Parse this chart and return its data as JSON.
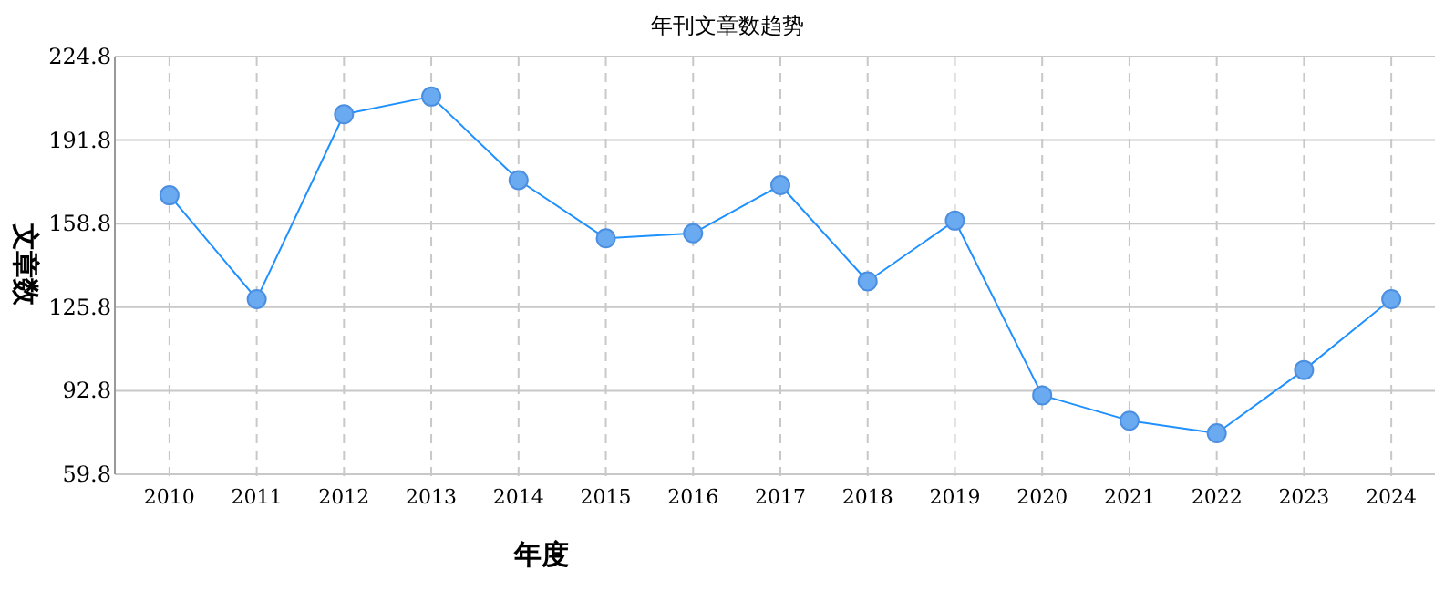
{
  "chart_data": {
    "type": "line",
    "title": "年刊文章数趋势",
    "xlabel": "年度",
    "ylabel": "文章数",
    "categories": [
      "2010",
      "2011",
      "2012",
      "2013",
      "2014",
      "2015",
      "2016",
      "2017",
      "2018",
      "2019",
      "2020",
      "2021",
      "2022",
      "2023",
      "2024"
    ],
    "series": [
      {
        "color": "#1e90ff",
        "values": [
          170,
          129,
          202,
          209,
          176,
          153,
          155,
          174,
          136,
          160,
          91,
          81,
          76,
          101,
          129
        ]
      }
    ],
    "ylim": [
      59.8,
      224.8
    ],
    "yticks": [
      59.8,
      92.8,
      125.8,
      158.8,
      191.8,
      224.8
    ],
    "grid": true,
    "marker": "circle",
    "line_style": "solid"
  }
}
